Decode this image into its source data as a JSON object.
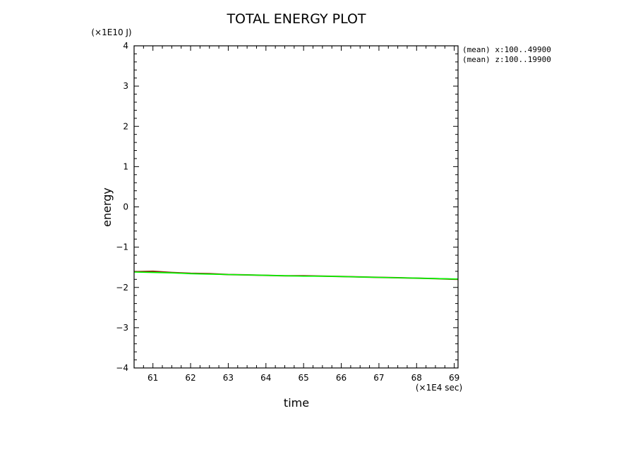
{
  "chart_data": {
    "type": "line",
    "title": "TOTAL ENERGY PLOT",
    "xlabel": "time",
    "ylabel": "energy",
    "x_unit": "(×1E4 sec)",
    "y_unit": "(×1E10 J)",
    "xlim": [
      60.5,
      69.1
    ],
    "ylim": [
      -4,
      4
    ],
    "x_ticks": [
      61,
      62,
      63,
      64,
      65,
      66,
      67,
      68,
      69
    ],
    "y_ticks": [
      -4,
      -3,
      -2,
      -1,
      0,
      1,
      2,
      3,
      4
    ],
    "y_tick_labels": [
      "−4",
      "−3",
      "−2",
      "−1",
      "0",
      "1",
      "2",
      "3",
      "4"
    ],
    "grid": false,
    "annotations": [
      "(mean) x:100..49900",
      "(mean) z:100..19900"
    ],
    "series": [
      {
        "color": "#8b2a10",
        "x": [
          60.5,
          61.0,
          61.5,
          62.0,
          62.5,
          63.0,
          63.5,
          64.0,
          64.5,
          65.0,
          65.5,
          66.0,
          66.5,
          67.0,
          67.5,
          68.0,
          68.5,
          69.1
        ],
        "y": [
          -1.61,
          -1.6,
          -1.63,
          -1.65,
          -1.66,
          -1.68,
          -1.69,
          -1.7,
          -1.71,
          -1.71,
          -1.72,
          -1.73,
          -1.74,
          -1.75,
          -1.76,
          -1.77,
          -1.78,
          -1.8
        ]
      },
      {
        "color": "#00ff00",
        "x": [
          60.5,
          61.0,
          61.5,
          62.0,
          62.5,
          63.0,
          63.5,
          64.0,
          64.5,
          65.0,
          65.5,
          66.0,
          66.5,
          67.0,
          67.5,
          68.0,
          68.5,
          69.1
        ],
        "y": [
          -1.62,
          -1.63,
          -1.64,
          -1.66,
          -1.67,
          -1.68,
          -1.69,
          -1.7,
          -1.71,
          -1.72,
          -1.72,
          -1.73,
          -1.74,
          -1.75,
          -1.76,
          -1.77,
          -1.78,
          -1.79
        ]
      }
    ]
  }
}
